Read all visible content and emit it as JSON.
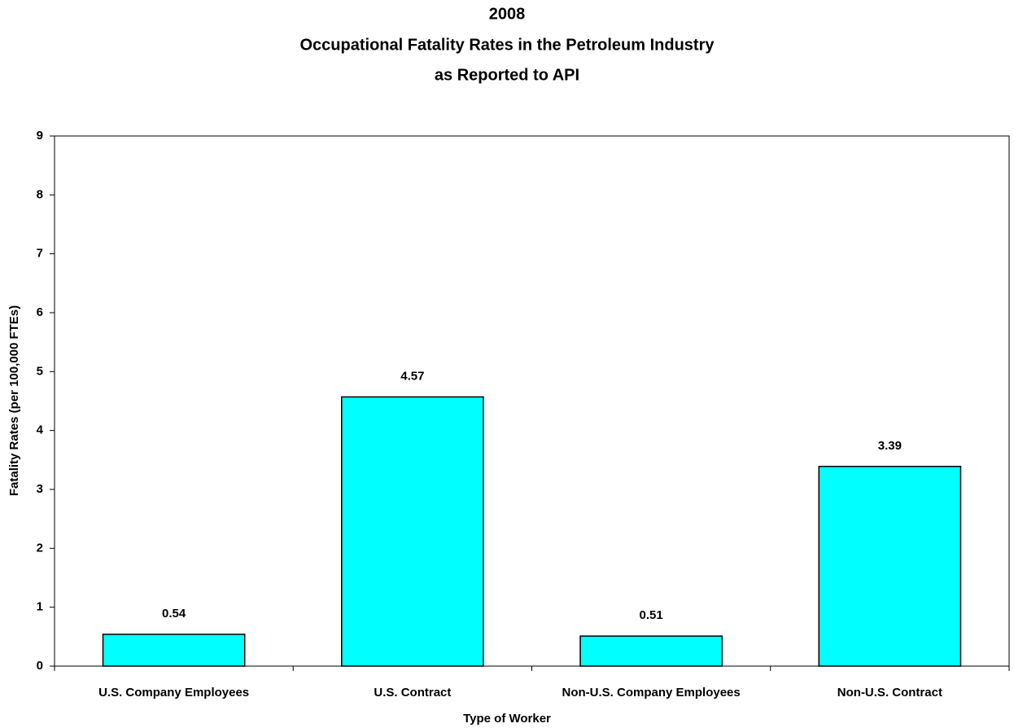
{
  "chart_data": {
    "type": "bar",
    "title": [
      "2008",
      "Occupational Fatality Rates in the Petroleum Industry",
      "as Reported to API"
    ],
    "x_label": "Type of Worker",
    "y_label": "Fatality Rates (per 100,000 FTEs)",
    "categories": [
      "U.S. Company Employees",
      "U.S. Contract",
      "Non-U.S. Company Employees",
      "Non-U.S. Contract"
    ],
    "values": [
      0.54,
      4.57,
      0.51,
      3.39
    ],
    "color": "#00ffff",
    "ylim": [
      0,
      9
    ],
    "yticks": [
      0,
      1,
      2,
      3,
      4,
      5,
      6,
      7,
      8,
      9
    ],
    "grid": false
  }
}
